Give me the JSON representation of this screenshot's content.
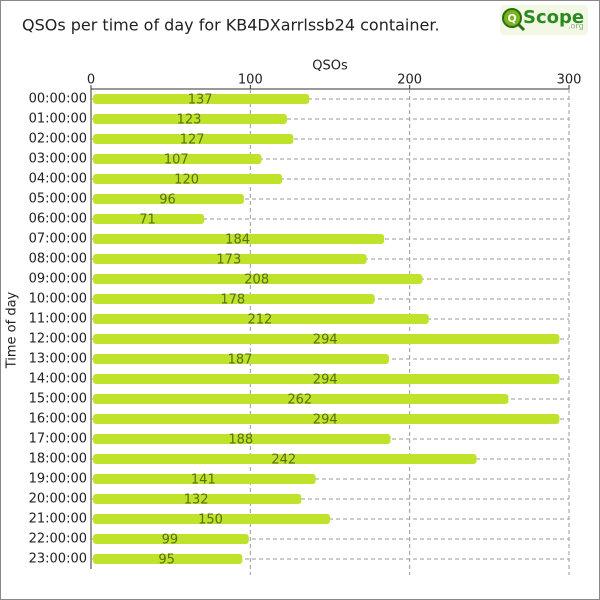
{
  "chart_data": {
    "type": "hbar",
    "title": "QSOs per time of day for KB4DXarrlssb24 container.",
    "x_label": "QSOs",
    "y_label": "Time of day",
    "categories": [
      "00:00:00",
      "01:00:00",
      "02:00:00",
      "03:00:00",
      "04:00:00",
      "05:00:00",
      "06:00:00",
      "07:00:00",
      "08:00:00",
      "09:00:00",
      "10:00:00",
      "11:00:00",
      "12:00:00",
      "13:00:00",
      "14:00:00",
      "15:00:00",
      "16:00:00",
      "17:00:00",
      "18:00:00",
      "19:00:00",
      "20:00:00",
      "21:00:00",
      "22:00:00",
      "23:00:00"
    ],
    "values": [
      137,
      123,
      127,
      107,
      120,
      96,
      71,
      184,
      173,
      208,
      178,
      212,
      294,
      187,
      294,
      262,
      294,
      188,
      242,
      141,
      132,
      150,
      99,
      95
    ],
    "color": "#bfe32a",
    "xlim": [
      0,
      300
    ],
    "xticks": [
      0,
      100,
      200,
      300
    ],
    "grid": true
  },
  "logo": {
    "letter": "Q",
    "text": "Scope",
    "suffix": ".org"
  }
}
